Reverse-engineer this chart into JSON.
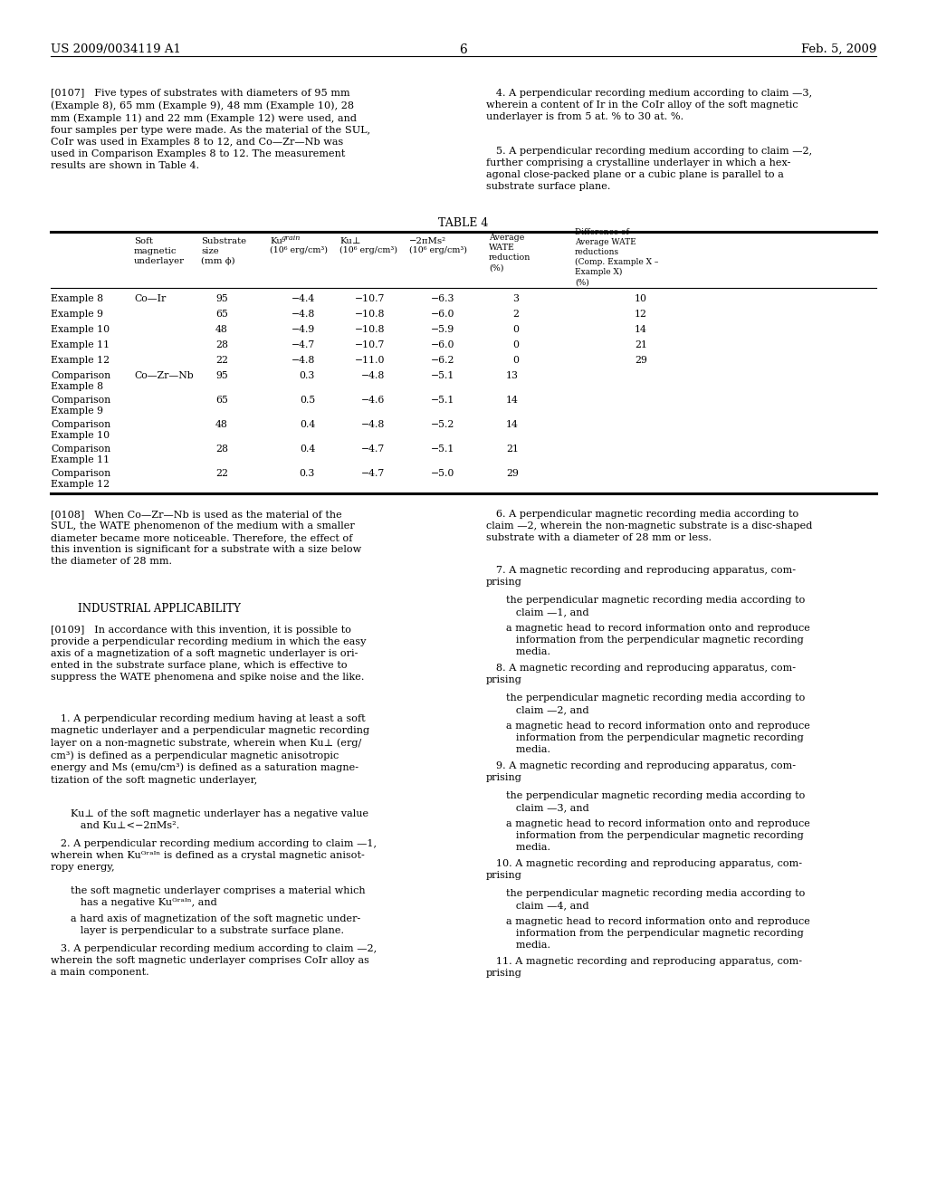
{
  "background_color": "#ffffff",
  "header_left": "US 2009/0034119 A1",
  "header_center": "6",
  "header_right": "Feb. 5, 2009"
}
